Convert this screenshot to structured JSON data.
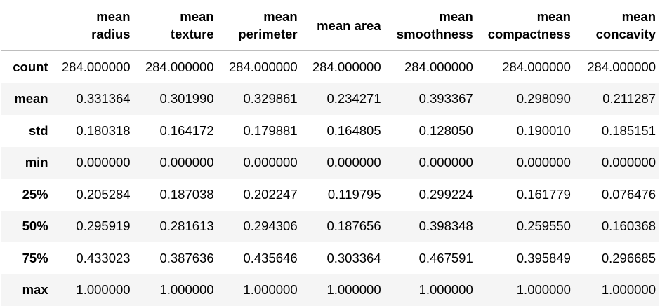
{
  "table": {
    "columns": [
      [
        "mean",
        "radius"
      ],
      [
        "mean",
        "texture"
      ],
      [
        "mean",
        "perimeter"
      ],
      [
        "mean area"
      ],
      [
        "mean",
        "smoothness"
      ],
      [
        "mean",
        "compactness"
      ],
      [
        "mean",
        "concavity"
      ]
    ],
    "rows": [
      {
        "label": "count",
        "values": [
          "284.000000",
          "284.000000",
          "284.000000",
          "284.000000",
          "284.000000",
          "284.000000",
          "284.000000"
        ]
      },
      {
        "label": "mean",
        "values": [
          "0.331364",
          "0.301990",
          "0.329861",
          "0.234271",
          "0.393367",
          "0.298090",
          "0.211287"
        ]
      },
      {
        "label": "std",
        "values": [
          "0.180318",
          "0.164172",
          "0.179881",
          "0.164805",
          "0.128050",
          "0.190010",
          "0.185151"
        ]
      },
      {
        "label": "min",
        "values": [
          "0.000000",
          "0.000000",
          "0.000000",
          "0.000000",
          "0.000000",
          "0.000000",
          "0.000000"
        ]
      },
      {
        "label": "25%",
        "values": [
          "0.205284",
          "0.187038",
          "0.202247",
          "0.119795",
          "0.299224",
          "0.161779",
          "0.076476"
        ]
      },
      {
        "label": "50%",
        "values": [
          "0.295919",
          "0.281613",
          "0.294306",
          "0.187656",
          "0.398348",
          "0.259550",
          "0.160368"
        ]
      },
      {
        "label": "75%",
        "values": [
          "0.433023",
          "0.387636",
          "0.435646",
          "0.303364",
          "0.467591",
          "0.395849",
          "0.296685"
        ]
      },
      {
        "label": "max",
        "values": [
          "1.000000",
          "1.000000",
          "1.000000",
          "1.000000",
          "1.000000",
          "1.000000",
          "1.000000"
        ]
      }
    ]
  }
}
